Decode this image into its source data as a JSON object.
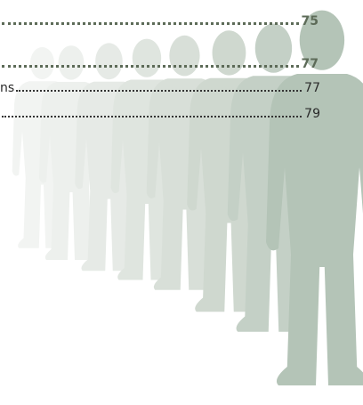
{
  "toc": {
    "entries": [
      {
        "page": "75"
      },
      {
        "page": "77"
      },
      {
        "text": "ns",
        "page": "77"
      },
      {
        "page": "79"
      }
    ]
  }
}
